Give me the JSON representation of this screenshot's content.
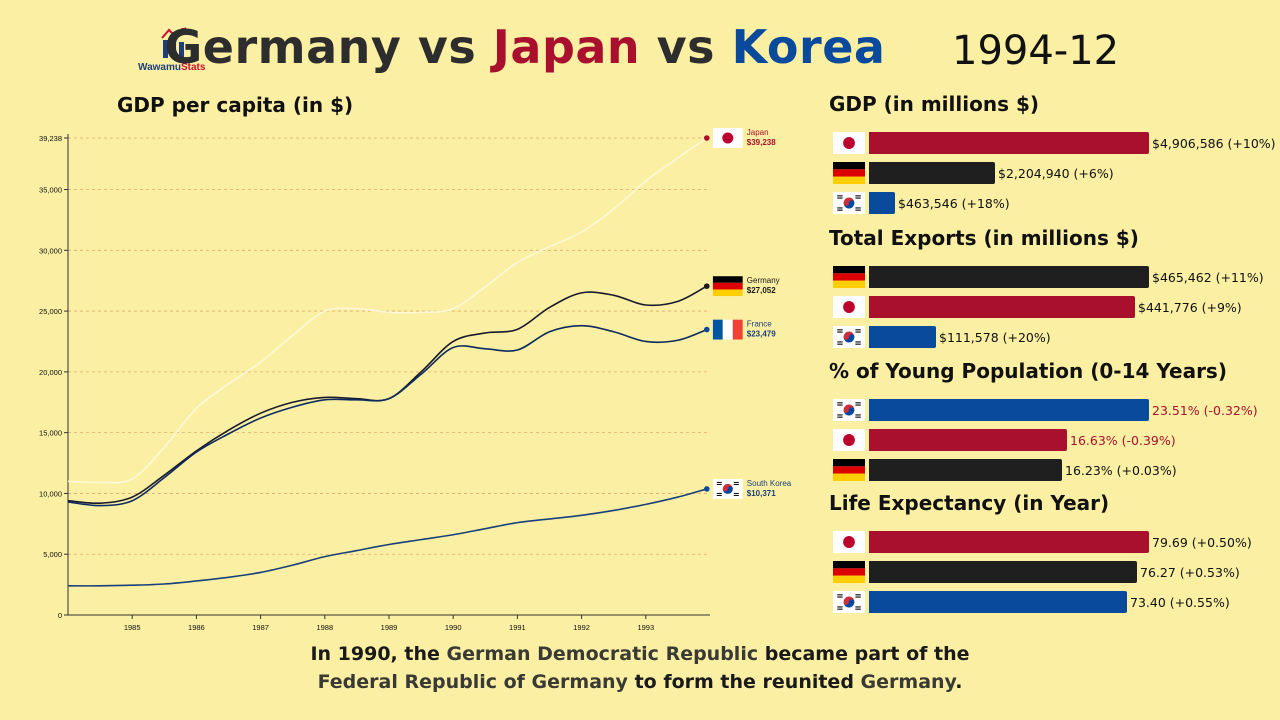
{
  "brand": {
    "name_part1": "Wawamu",
    "name_part2": "Stats"
  },
  "headline": {
    "country1": "Germany",
    "vs1": " vs ",
    "country2": "Japan",
    "vs2": " vs ",
    "country3": "Korea",
    "period": "1994-12"
  },
  "colors": {
    "japan": "#a8102e",
    "germany": "#1f1f1f",
    "korea": "#0a4a9c",
    "background": "#faefa3",
    "japan_line": "#fff8d8",
    "germany_line": "#1a1a2e",
    "france_line": "#0d2b5e",
    "korea_line": "#18407a"
  },
  "chart_data": {
    "type": "line",
    "title": "GDP per capita (in $)",
    "xlabel": "",
    "ylabel": "",
    "x_ticks": [
      "1985",
      "1986",
      "1987",
      "1988",
      "1989",
      "1990",
      "1991",
      "1992",
      "1993"
    ],
    "x_range": [
      1984.0,
      1994.0
    ],
    "ylim": [
      0,
      39238
    ],
    "y_ticks": [
      "0",
      "5,000",
      "10,000",
      "15,000",
      "20,000",
      "25,000",
      "30,000",
      "35,000",
      "39,238"
    ],
    "grid": true,
    "series": [
      {
        "name": "Japan",
        "label": "$39,238",
        "flag": "japan",
        "x": [
          1984.0,
          1984.5,
          1985.0,
          1985.5,
          1986.0,
          1986.5,
          1987.0,
          1987.5,
          1988.0,
          1988.5,
          1989.0,
          1989.5,
          1990.0,
          1990.5,
          1991.0,
          1991.5,
          1992.0,
          1992.5,
          1993.0,
          1993.5,
          1993.95
        ],
        "y": [
          11000,
          10900,
          11200,
          13800,
          17000,
          19000,
          20800,
          23000,
          25000,
          25200,
          24900,
          24900,
          25200,
          27000,
          29000,
          30300,
          31500,
          33400,
          35700,
          37600,
          39238
        ]
      },
      {
        "name": "Germany",
        "label": "$27,052",
        "flag": "germany",
        "x": [
          1984.0,
          1984.5,
          1985.0,
          1985.5,
          1986.0,
          1986.5,
          1987.0,
          1987.5,
          1988.0,
          1988.5,
          1989.0,
          1989.5,
          1990.0,
          1990.5,
          1991.0,
          1991.5,
          1992.0,
          1992.5,
          1993.0,
          1993.5,
          1993.95
        ],
        "y": [
          9400,
          9200,
          9700,
          11500,
          13500,
          15200,
          16600,
          17500,
          17900,
          17800,
          17800,
          20000,
          22500,
          23200,
          23500,
          25300,
          26500,
          26300,
          25500,
          25800,
          27052
        ]
      },
      {
        "name": "France",
        "label": "$23,479",
        "flag": "france",
        "x": [
          1984.0,
          1984.5,
          1985.0,
          1985.5,
          1986.0,
          1986.5,
          1987.0,
          1987.5,
          1988.0,
          1988.5,
          1989.0,
          1989.5,
          1990.0,
          1990.5,
          1991.0,
          1991.5,
          1992.0,
          1992.5,
          1993.0,
          1993.5,
          1993.95
        ],
        "y": [
          9300,
          9000,
          9400,
          11300,
          13400,
          14900,
          16200,
          17100,
          17700,
          17700,
          17800,
          19800,
          22000,
          21900,
          21800,
          23300,
          23800,
          23300,
          22500,
          22600,
          23479
        ]
      },
      {
        "name": "South Korea",
        "label": "$10,371",
        "flag": "korea",
        "x": [
          1984.0,
          1984.5,
          1985.0,
          1985.5,
          1986.0,
          1986.5,
          1987.0,
          1987.5,
          1988.0,
          1988.5,
          1989.0,
          1989.5,
          1990.0,
          1990.5,
          1991.0,
          1991.5,
          1992.0,
          1992.5,
          1993.0,
          1993.5,
          1993.95
        ],
        "y": [
          2400,
          2400,
          2450,
          2550,
          2800,
          3100,
          3500,
          4100,
          4800,
          5300,
          5800,
          6200,
          6600,
          7100,
          7600,
          7900,
          8200,
          8600,
          9100,
          9700,
          10371
        ]
      }
    ]
  },
  "sections": [
    {
      "title": "GDP (in millions $)",
      "rows": [
        {
          "flag": "japan",
          "value": "$4,906,586 (+10%)",
          "fraction": 1.0,
          "red_text": false
        },
        {
          "flag": "germany",
          "value": "$2,204,940 (+6%)",
          "fraction": 0.449,
          "red_text": false
        },
        {
          "flag": "korea",
          "value": "$463,546 (+18%)",
          "fraction": 0.094,
          "red_text": false
        }
      ]
    },
    {
      "title": "Total Exports (in millions $)",
      "rows": [
        {
          "flag": "germany",
          "value": "$465,462 (+11%)",
          "fraction": 1.0,
          "red_text": false
        },
        {
          "flag": "japan",
          "value": "$441,776 (+9%)",
          "fraction": 0.949,
          "red_text": false
        },
        {
          "flag": "korea",
          "value": "$111,578 (+20%)",
          "fraction": 0.24,
          "red_text": false
        }
      ]
    },
    {
      "title": "% of Young Population (0-14 Years)",
      "rows": [
        {
          "flag": "korea",
          "value": "23.51% (-0.32%)",
          "fraction": 1.0,
          "red_text": true
        },
        {
          "flag": "japan",
          "value": "16.63% (-0.39%)",
          "fraction": 0.707,
          "red_text": true
        },
        {
          "flag": "germany",
          "value": "16.23% (+0.03%)",
          "fraction": 0.69,
          "red_text": false
        }
      ]
    },
    {
      "title": "Life Expectancy (in Year)",
      "rows": [
        {
          "flag": "japan",
          "value": "79.69 (+0.50%)",
          "fraction": 1.0,
          "red_text": false
        },
        {
          "flag": "germany",
          "value": "76.27 (+0.53%)",
          "fraction": 0.957,
          "red_text": false
        },
        {
          "flag": "korea",
          "value": "73.40 (+0.55%)",
          "fraction": 0.921,
          "red_text": false
        }
      ]
    }
  ],
  "footnote": {
    "p1": "In 1990, the ",
    "p2": "German Democratic Republic",
    "p3": " became part of the",
    "p4": "Federal Republic of Germany",
    "p5": " to form the reunited ",
    "p6": "Germany",
    "p7": "."
  }
}
